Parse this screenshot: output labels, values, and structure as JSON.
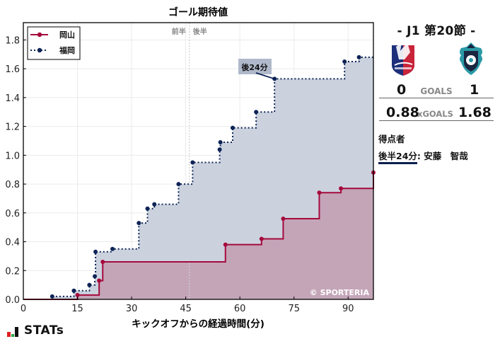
{
  "chart_data": {
    "type": "line",
    "subtype": "step-area",
    "title": "ゴール期待値",
    "xlabel": "キックオフからの経過時間(分)",
    "ylabel": "",
    "xlim": [
      0,
      97
    ],
    "ylim": [
      0,
      1.92
    ],
    "xticks": [
      0,
      15,
      30,
      45,
      60,
      75,
      90
    ],
    "yticks": [
      0.0,
      0.2,
      0.4,
      0.6,
      0.8,
      1.0,
      1.2,
      1.4,
      1.6,
      1.8
    ],
    "grid": true,
    "legend_position": "upper left",
    "halftime_line": 46,
    "halftime_labels": [
      "前半",
      "後半"
    ],
    "watermark": "© SPORTERIA",
    "annotations": [
      {
        "text": "後24分",
        "x": 69.6,
        "y": 1.53,
        "series": "福岡"
      }
    ],
    "series": [
      {
        "name": "岡山",
        "color": "#a50a3c",
        "fill": "#c4a5b8",
        "linestyle": "solid",
        "points": [
          [
            15,
            0.03
          ],
          [
            21,
            0.13
          ],
          [
            22,
            0.26
          ],
          [
            56,
            0.38
          ],
          [
            66,
            0.42
          ],
          [
            72,
            0.56
          ],
          [
            82,
            0.74
          ],
          [
            88,
            0.77
          ],
          [
            97,
            0.88
          ]
        ]
      },
      {
        "name": "福岡",
        "color": "#0d2356",
        "fill": "#cbd2de",
        "linestyle": "dotted",
        "points": [
          [
            8,
            0.02
          ],
          [
            14,
            0.06
          ],
          [
            18.3,
            0.1
          ],
          [
            19.8,
            0.16
          ],
          [
            20,
            0.33
          ],
          [
            24.7,
            0.35
          ],
          [
            32,
            0.53
          ],
          [
            34.4,
            0.63
          ],
          [
            36.3,
            0.66
          ],
          [
            43,
            0.8
          ],
          [
            46.9,
            0.95
          ],
          [
            54.4,
            1.04
          ],
          [
            54.6,
            1.09
          ],
          [
            58,
            1.19
          ],
          [
            64.5,
            1.3
          ],
          [
            69.6,
            1.53
          ],
          [
            89,
            1.65
          ],
          [
            93,
            1.68
          ]
        ]
      }
    ]
  },
  "match": {
    "round": "-  J1 第20節  -",
    "home": {
      "name": "岡山",
      "goals": "0",
      "xg": "0.88",
      "logo": "fagiano-okayama-crest"
    },
    "away": {
      "name": "福岡",
      "goals": "1",
      "xg": "1.68",
      "logo": "avispa-fukuoka-crest"
    },
    "goals_label": "GOALS",
    "xgoals_label": "xGOALS"
  },
  "scorers": {
    "heading": "得点者",
    "items": [
      {
        "time": "後半24分",
        "name": ": 安藤　智哉"
      }
    ]
  },
  "brand": {
    "name": "STATs"
  }
}
